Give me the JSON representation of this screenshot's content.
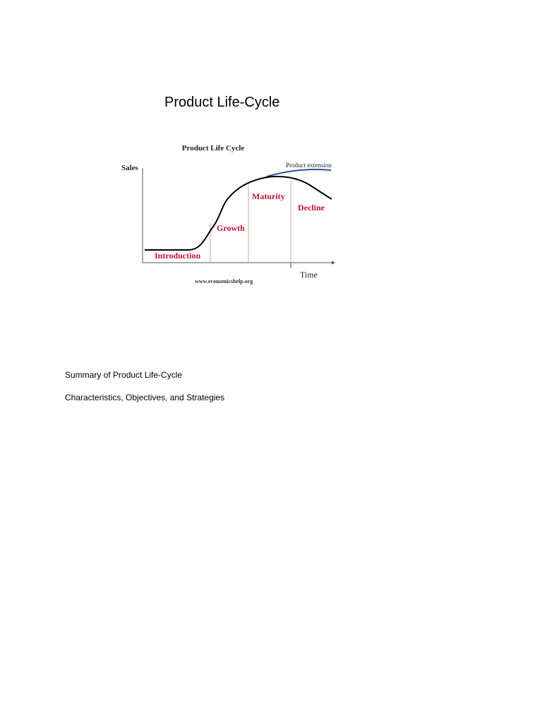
{
  "document": {
    "heading": "Product Life-Cycle",
    "summary_title": "Summary of Product Life-Cycle",
    "summary_subtitle": "Characteristics, Objectives, and Strategies"
  },
  "figure": {
    "title": "Product Life Cycle",
    "y_axis_label": "Sales",
    "x_axis_label": "Time",
    "stages": [
      "Introduction",
      "Growth",
      "Maturity",
      "Decline"
    ],
    "extension_label": "Product extension",
    "source_credit": "www.economicshelp.org",
    "curve_color": "#000000",
    "extension_color": "#2a4f9b",
    "stage_label_color": "#c8102e",
    "divider_color": "#d9a0a8"
  }
}
